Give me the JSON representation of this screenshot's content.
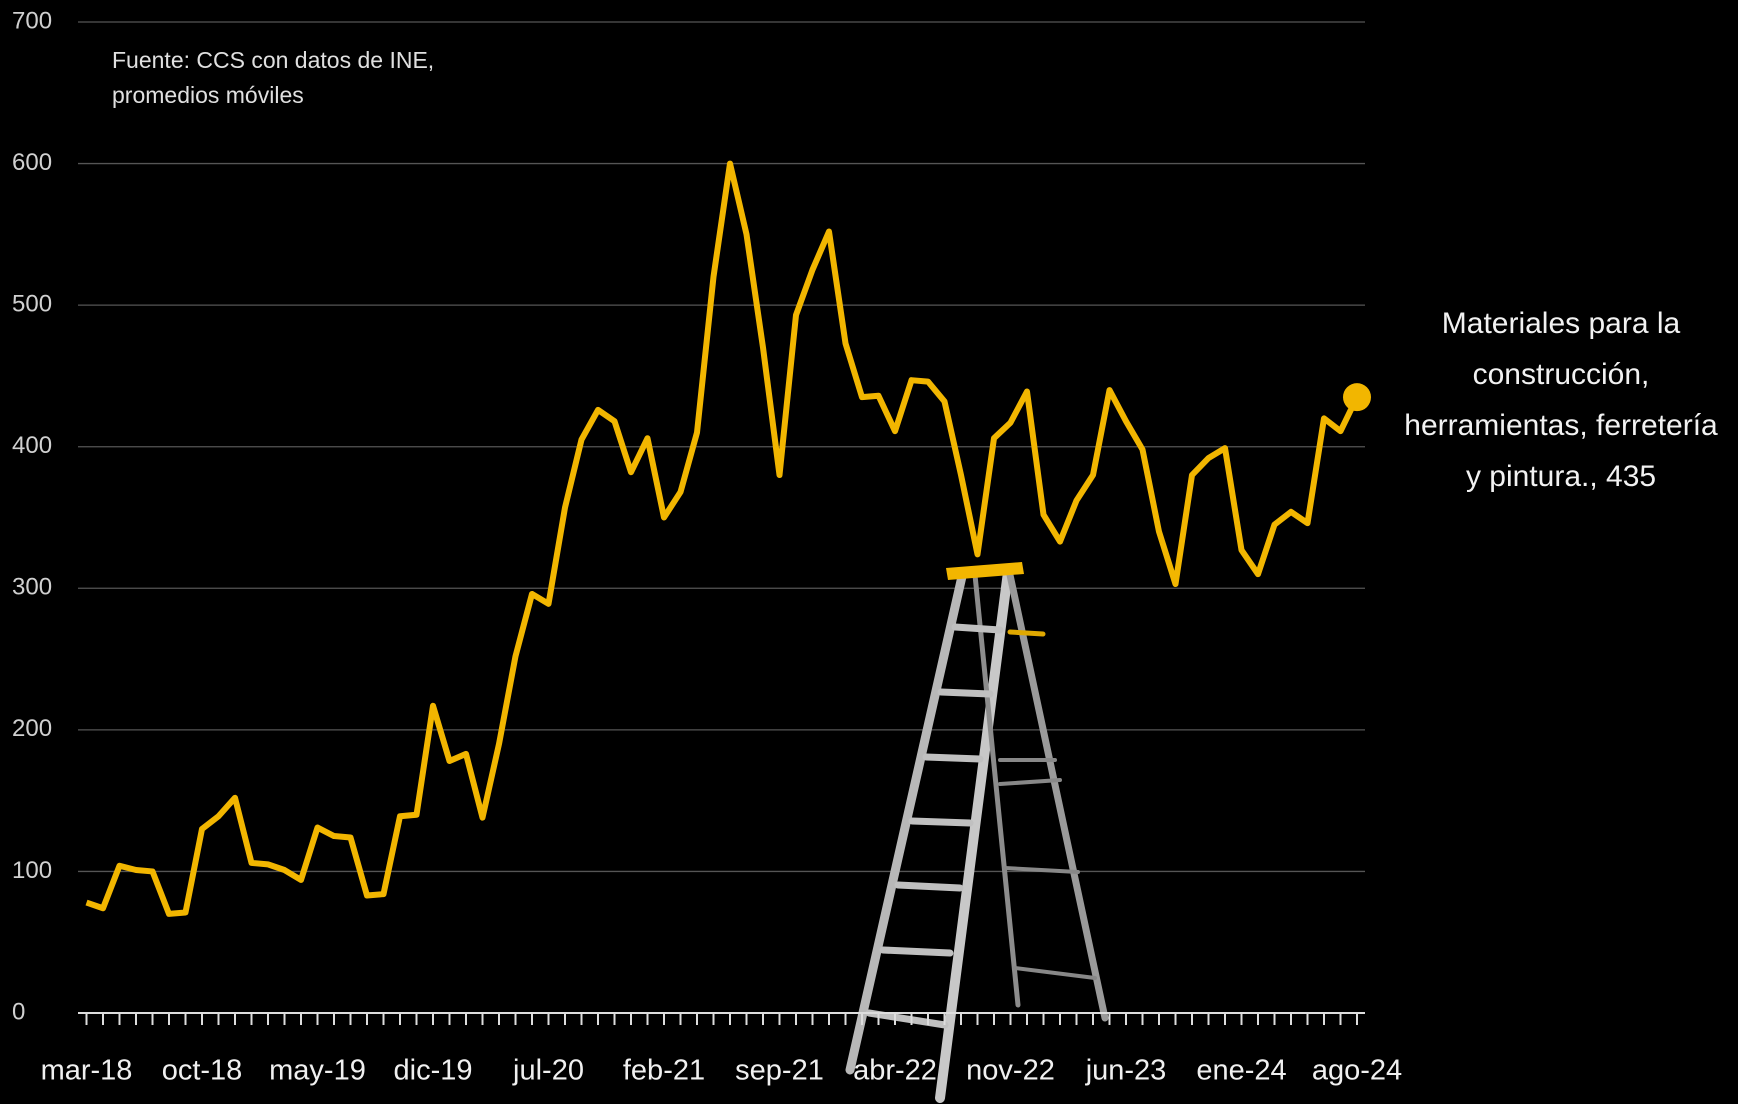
{
  "chart_data": {
    "type": "line",
    "note": [
      "Fuente: CCS con datos de INE,",
      "promedios móviles"
    ],
    "annotation": [
      "Materiales para la",
      "construcción,",
      "herramientas, ferretería",
      "y pintura., 435"
    ],
    "categories": [
      "mar-18",
      null,
      null,
      null,
      null,
      null,
      null,
      "oct-18",
      null,
      null,
      null,
      null,
      null,
      null,
      "may-19",
      null,
      null,
      null,
      null,
      null,
      null,
      "dic-19",
      null,
      null,
      null,
      null,
      null,
      null,
      "jul-20",
      null,
      null,
      null,
      null,
      null,
      null,
      "feb-21",
      null,
      null,
      null,
      null,
      null,
      null,
      "sep-21",
      null,
      null,
      null,
      null,
      null,
      null,
      "abr-22",
      null,
      null,
      null,
      null,
      null,
      null,
      "nov-22",
      null,
      null,
      null,
      null,
      null,
      null,
      "jun-23",
      null,
      null,
      null,
      null,
      null,
      null,
      "ene-24",
      null,
      null,
      null,
      null,
      null,
      null,
      "ago-24"
    ],
    "values": [
      78,
      74,
      104,
      101,
      100,
      70,
      71,
      130,
      139,
      152,
      106,
      105,
      101,
      94,
      131,
      125,
      124,
      83,
      84,
      139,
      140,
      217,
      178,
      183,
      138,
      190,
      252,
      296,
      289,
      357,
      405,
      426,
      418,
      382,
      406,
      350,
      368,
      410,
      520,
      600,
      550,
      470,
      380,
      493,
      525,
      552,
      473,
      435,
      436,
      411,
      447,
      446,
      432,
      380,
      324,
      406,
      417,
      439,
      352,
      333,
      362,
      380,
      440,
      418,
      398,
      340,
      303,
      380,
      392,
      399,
      327,
      310,
      345,
      354,
      346,
      420,
      411,
      435
    ],
    "color": "#f2b600",
    "ylim": [
      0,
      700
    ],
    "yticks": [
      0,
      100,
      200,
      300,
      400,
      500,
      600,
      700
    ],
    "grid": true
  }
}
